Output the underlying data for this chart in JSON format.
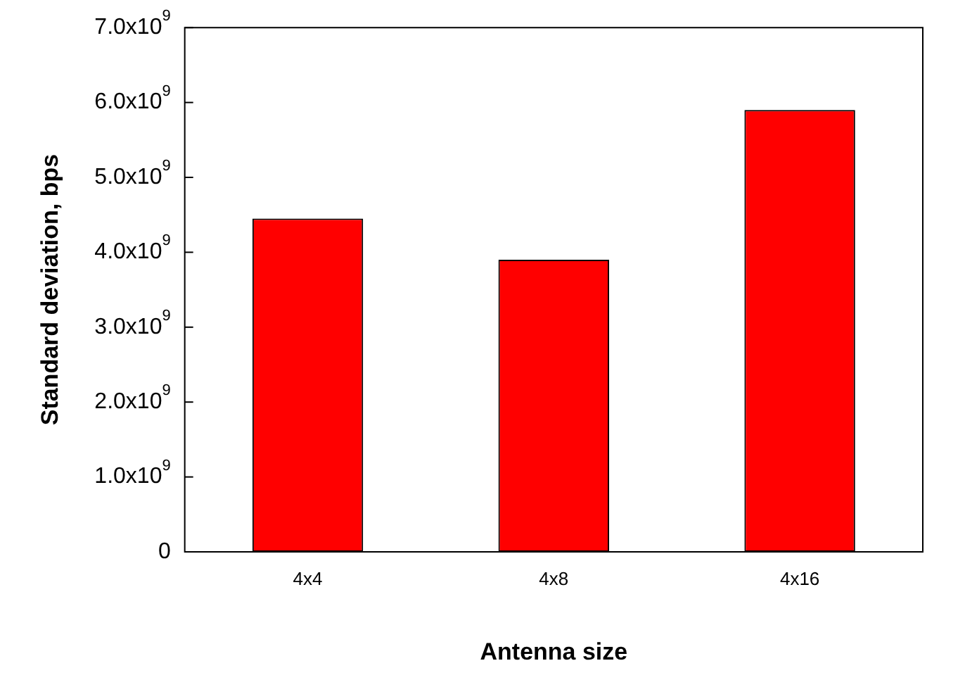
{
  "chart_data": {
    "type": "bar",
    "xlabel": "Antenna size",
    "ylabel": "Standard deviation, bps",
    "categories": [
      "4x4",
      "4x8",
      "4x16"
    ],
    "values": [
      4450000000.0,
      3900000000.0,
      5900000000.0
    ],
    "color": "#ff0000",
    "ylim": [
      0,
      7000000000.0
    ],
    "yticks": [
      0,
      {
        "value": 1000000000.0,
        "label": "1.0x10$^{9}$"
      },
      {
        "value": 2000000000.0,
        "label": "2.0x10$^{9}$"
      },
      {
        "value": 3000000000.0,
        "label": "3.0x10$^{9}$"
      },
      {
        "value": 4000000000.0,
        "label": "4.0x10$^{9}$"
      },
      {
        "value": 5000000000.0,
        "label": "5.0x10$^{9}$"
      },
      {
        "value": 6000000000.0,
        "label": "6.0x10$^{9}$"
      },
      {
        "value": 7000000000.0,
        "label": "7.0x10$^{9}$"
      }
    ],
    "grid": false,
    "legend": false
  }
}
